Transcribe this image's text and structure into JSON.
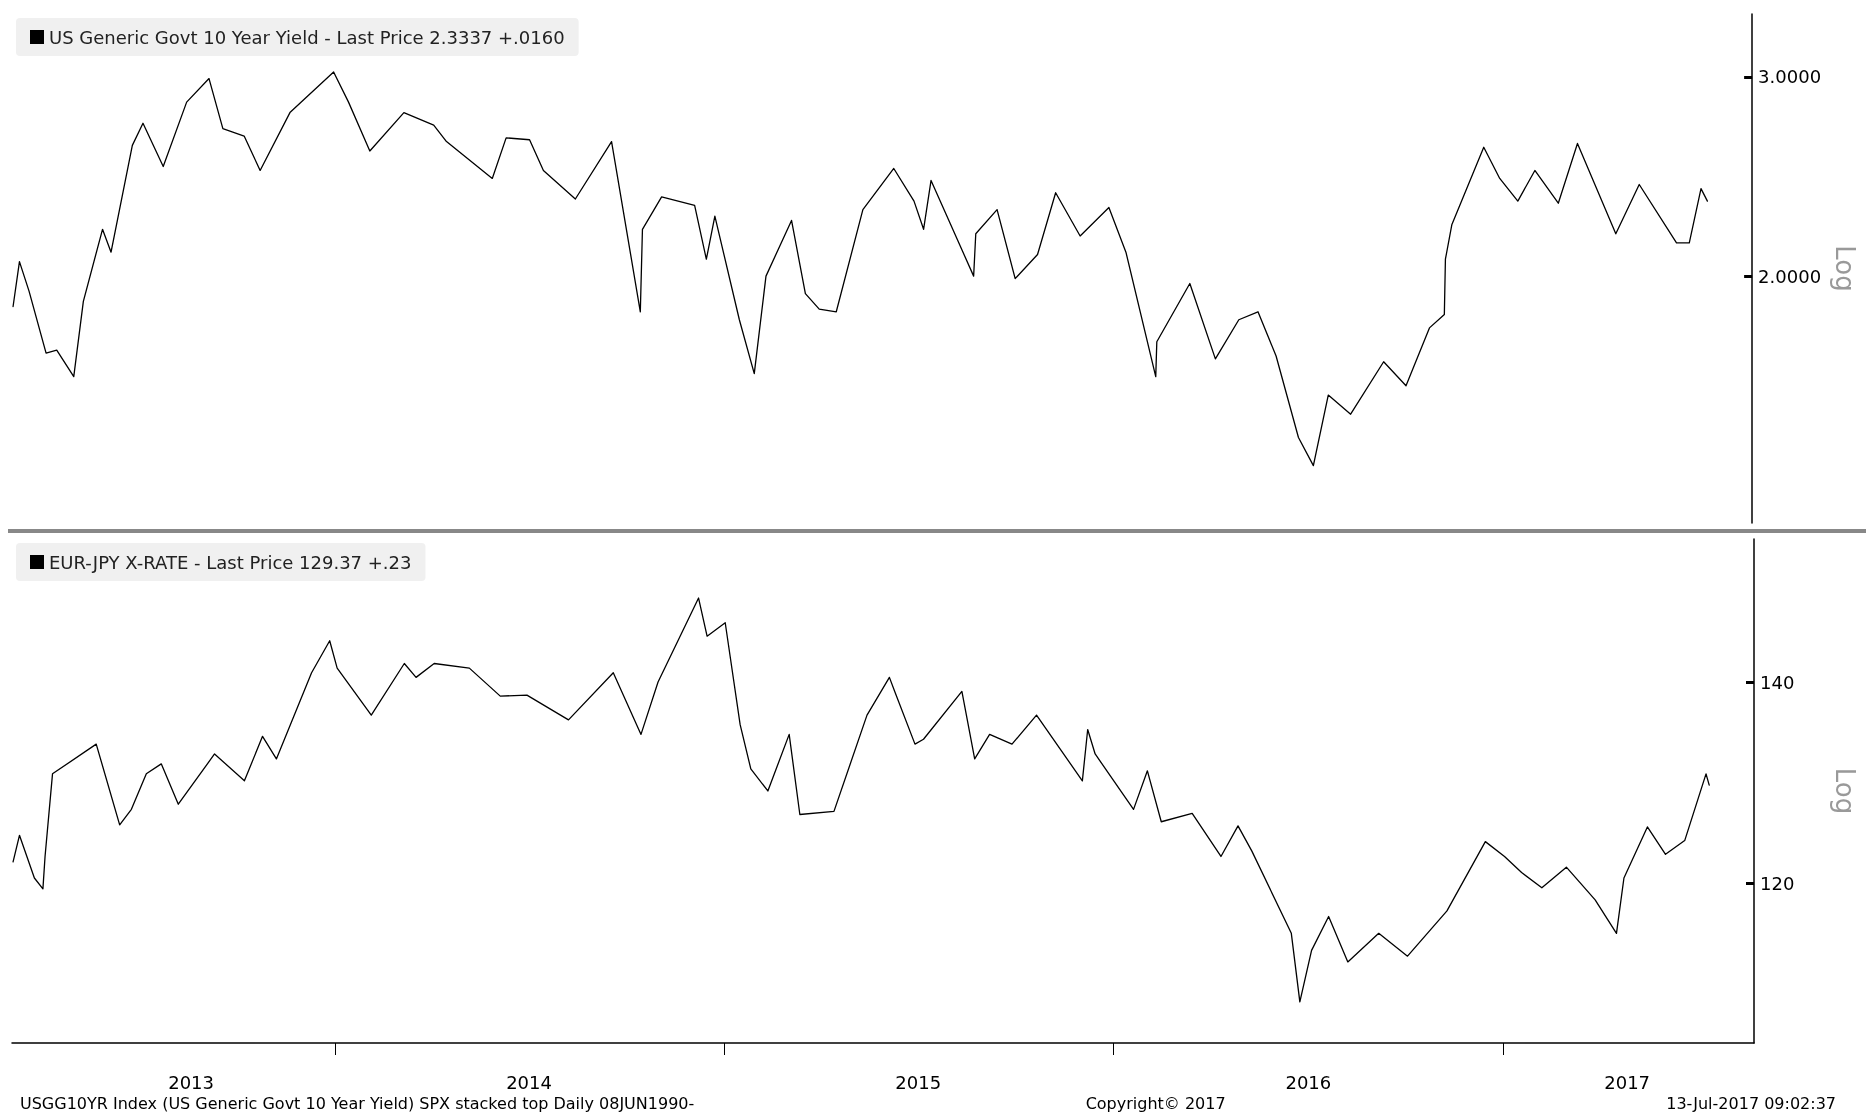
{
  "chart_data": [
    {
      "type": "line",
      "ylabel": "Log",
      "log": "y",
      "legend": "top left",
      "tick_labels": "y",
      "xlim": [
        "2013-03-04",
        "2017-08-24"
      ],
      "ylim": [
        1.21,
        3.41
      ],
      "yticks": [
        {
          "value": 2,
          "label": "2.0000"
        },
        {
          "value": 3,
          "label": "3.0000"
        }
      ],
      "x": [
        "2013-03-05",
        "2013-03-11",
        "2013-03-20",
        "2013-04-05",
        "2013-04-15",
        "2013-05-01",
        "2013-05-10",
        "2013-05-28",
        "2013-06-05",
        "2013-06-25",
        "2013-07-05",
        "2013-07-24",
        "2013-08-15",
        "2013-09-05",
        "2013-09-18",
        "2013-10-08",
        "2013-10-23",
        "2013-11-20",
        "2013-12-31",
        "2014-01-14",
        "2014-02-03",
        "2014-03-07",
        "2014-04-04",
        "2014-04-16",
        "2014-05-29",
        "2014-06-11",
        "2014-07-03",
        "2014-07-16",
        "2014-08-15",
        "2014-09-18",
        "2014-10-15",
        "2014-10-17",
        "2014-11-04",
        "2014-12-05",
        "2014-12-16",
        "2014-12-24",
        "2015-01-16",
        "2015-01-30",
        "2015-02-10",
        "2015-03-06",
        "2015-03-19",
        "2015-04-01",
        "2015-04-17",
        "2015-05-12",
        "2015-06-10",
        "2015-06-29",
        "2015-07-08",
        "2015-07-15",
        "2015-08-24",
        "2015-08-26",
        "2015-09-15",
        "2015-10-02",
        "2015-10-23",
        "2015-11-09",
        "2015-12-02",
        "2015-12-29",
        "2016-01-14",
        "2016-02-11",
        "2016-02-12",
        "2016-03-14",
        "2016-04-07",
        "2016-04-29",
        "2016-05-17",
        "2016-06-03",
        "2016-06-24",
        "2016-07-08",
        "2016-07-22",
        "2016-08-12",
        "2016-09-12",
        "2016-10-03",
        "2016-10-25",
        "2016-11-08",
        "2016-11-09",
        "2016-11-15",
        "2016-12-15",
        "2016-12-30",
        "2017-01-16",
        "2017-02-01",
        "2017-02-23",
        "2017-03-13",
        "2017-04-18",
        "2017-05-10",
        "2017-06-14",
        "2017-06-26",
        "2017-07-07",
        "2017-07-13"
      ],
      "series": [
        {
          "name": "US Generic Govt 10 Year Yield - Last Price 2.3337 +.0160",
          "color": "#000000",
          "values": [
            1.88,
            2.06,
            1.94,
            1.71,
            1.72,
            1.63,
            1.9,
            2.2,
            2.1,
            2.61,
            2.73,
            2.5,
            2.85,
            2.99,
            2.7,
            2.66,
            2.48,
            2.79,
            3.03,
            2.85,
            2.58,
            2.79,
            2.72,
            2.63,
            2.44,
            2.65,
            2.64,
            2.48,
            2.34,
            2.63,
            1.86,
            2.2,
            2.35,
            2.31,
            2.07,
            2.26,
            1.83,
            1.64,
            2.0,
            2.24,
            1.93,
            1.87,
            1.86,
            2.29,
            2.49,
            2.33,
            2.2,
            2.43,
            2.0,
            2.18,
            2.29,
            1.99,
            2.09,
            2.37,
            2.17,
            2.3,
            2.1,
            1.63,
            1.75,
            1.97,
            1.69,
            1.83,
            1.86,
            1.7,
            1.44,
            1.36,
            1.57,
            1.51,
            1.68,
            1.6,
            1.8,
            1.85,
            2.07,
            2.22,
            2.6,
            2.44,
            2.33,
            2.48,
            2.32,
            2.62,
            2.18,
            2.41,
            2.14,
            2.14,
            2.39,
            2.33
          ]
        }
      ]
    },
    {
      "type": "line",
      "ylabel": "Log",
      "log": "y",
      "legend": "top left",
      "xlim": [
        "2013-03-04",
        "2017-08-24"
      ],
      "ylim": [
        106.2,
        156.2
      ],
      "yticks": [
        120,
        140
      ],
      "xticks": [
        {
          "value": "2013-08-19",
          "label": "2013"
        },
        {
          "value": "2014-01-01",
          "label": null
        },
        {
          "value": "2014-07-02",
          "label": "2014"
        },
        {
          "value": "2015-01-01",
          "label": null
        },
        {
          "value": "2015-07-02",
          "label": "2015"
        },
        {
          "value": "2016-01-01",
          "label": null
        },
        {
          "value": "2016-07-02",
          "label": "2016"
        },
        {
          "value": "2017-01-01",
          "label": null
        },
        {
          "value": "2017-04-27",
          "label": "2017"
        }
      ],
      "annotations": [
        "USGG10YR Index (US Generic Govt 10 Year Yield) SPX stacked top Daily 08JUN1990-",
        "Copyright© 2017",
        "13-Jul-2017 09:02:37"
      ],
      "x": [
        "2013-03-05",
        "2013-03-11",
        "2013-03-25",
        "2013-04-02",
        "2013-04-04",
        "2013-04-11",
        "2013-05-22",
        "2013-06-13",
        "2013-06-24",
        "2013-07-08",
        "2013-07-22",
        "2013-08-07",
        "2013-09-10",
        "2013-10-08",
        "2013-10-25",
        "2013-11-07",
        "2013-12-10",
        "2013-12-27",
        "2014-01-03",
        "2014-02-04",
        "2014-03-07",
        "2014-03-18",
        "2014-04-04",
        "2014-05-07",
        "2014-06-05",
        "2014-06-30",
        "2014-08-08",
        "2014-09-19",
        "2014-10-15",
        "2014-10-31",
        "2014-12-08",
        "2014-12-16",
        "2015-01-02",
        "2015-01-16",
        "2015-01-26",
        "2015-02-11",
        "2015-03-03",
        "2015-03-13",
        "2015-04-14",
        "2015-05-15",
        "2015-06-05",
        "2015-06-10",
        "2015-06-29",
        "2015-07-07",
        "2015-08-12",
        "2015-08-24",
        "2015-09-07",
        "2015-09-28",
        "2015-10-21",
        "2015-12-03",
        "2015-12-08",
        "2015-12-15",
        "2016-01-20",
        "2016-02-02",
        "2016-02-15",
        "2016-03-15",
        "2016-04-11",
        "2016-04-27",
        "2016-05-10",
        "2016-06-16",
        "2016-06-24",
        "2016-07-05",
        "2016-07-21",
        "2016-08-08",
        "2016-09-06",
        "2016-10-03",
        "2016-11-09",
        "2016-12-15",
        "2017-01-02",
        "2017-01-18",
        "2017-02-06",
        "2017-03-01",
        "2017-03-28",
        "2017-04-17",
        "2017-04-24",
        "2017-05-16",
        "2017-06-02",
        "2017-06-20",
        "2017-07-10",
        "2017-07-13"
      ],
      "series": [
        {
          "name": "EUR-JPY X-RATE - Last Price 129.37 +.23",
          "color": "#000000",
          "values": [
            122.0,
            124.5,
            120.5,
            119.5,
            122.5,
            130.5,
            133.5,
            125.5,
            127.0,
            130.5,
            131.5,
            127.5,
            132.5,
            129.8,
            134.3,
            132.0,
            141.0,
            144.5,
            141.5,
            136.5,
            142.0,
            140.5,
            142.0,
            141.5,
            138.5,
            138.6,
            136.0,
            141.0,
            134.5,
            140.0,
            149.3,
            145.0,
            146.5,
            135.5,
            131.0,
            128.8,
            134.5,
            126.5,
            126.8,
            136.5,
            140.5,
            139.0,
            133.5,
            134.0,
            139.0,
            132.0,
            134.5,
            133.5,
            136.5,
            129.8,
            135.0,
            132.5,
            127.0,
            130.8,
            125.8,
            126.6,
            122.5,
            125.4,
            123.0,
            115.5,
            109.6,
            114.0,
            117.0,
            113.0,
            115.5,
            113.5,
            117.5,
            123.9,
            122.5,
            121.0,
            119.6,
            121.5,
            118.5,
            115.5,
            120.5,
            125.3,
            122.7,
            124.0,
            130.5,
            129.37
          ]
        }
      ]
    }
  ]
}
